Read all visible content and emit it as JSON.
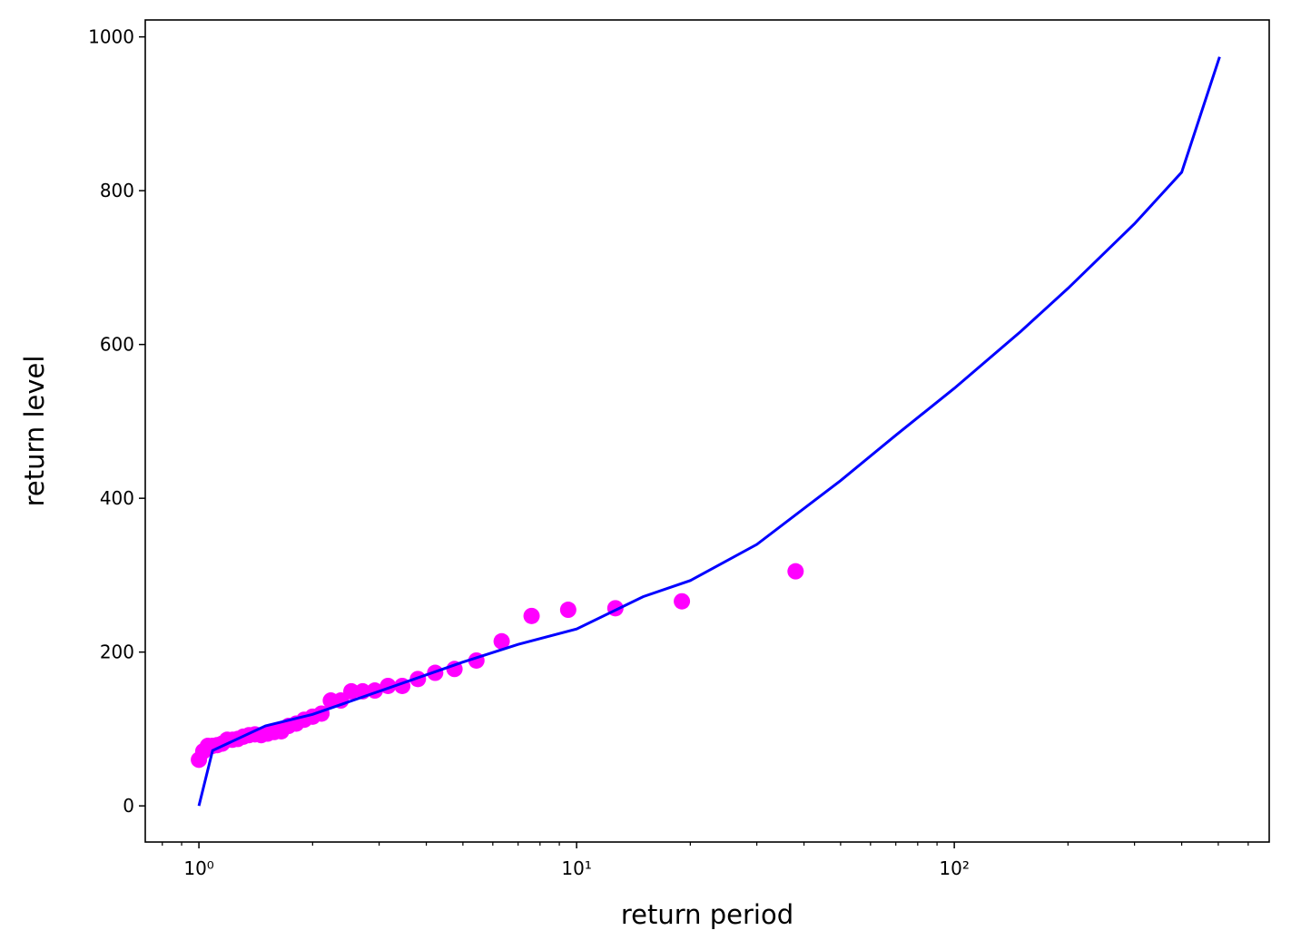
{
  "chart_data": {
    "type": "scatter",
    "x_label": "return period",
    "y_label": "return level",
    "xscale": "log",
    "xlim": [
      0.721,
      682
    ],
    "ylim": [
      -47,
      1022
    ],
    "xticks": [
      {
        "value": 1,
        "label": "10⁰"
      },
      {
        "value": 10,
        "label": "10¹"
      },
      {
        "value": 100,
        "label": "10²"
      }
    ],
    "xminorticks": [
      0.8,
      0.9,
      2,
      3,
      4,
      5,
      6,
      7,
      8,
      9,
      20,
      30,
      40,
      50,
      60,
      70,
      80,
      90,
      200,
      300,
      400,
      500,
      600
    ],
    "yticks": [
      0,
      200,
      400,
      600,
      800,
      1000
    ],
    "series": [
      {
        "type": "scatter",
        "color": "#ff00ff",
        "x": [
          1.0,
          1.027,
          1.056,
          1.086,
          1.118,
          1.152,
          1.188,
          1.226,
          1.267,
          1.31,
          1.357,
          1.407,
          1.462,
          1.52,
          1.583,
          1.652,
          1.727,
          1.81,
          1.9,
          2.0,
          2.111,
          2.235,
          2.375,
          2.533,
          2.714,
          2.923,
          3.167,
          3.455,
          3.8,
          4.222,
          4.75,
          5.429,
          6.333,
          7.6,
          9.5,
          12.667,
          19,
          38
        ],
        "values": [
          60,
          71,
          78,
          78,
          79,
          81,
          86,
          86,
          87,
          90,
          92,
          93,
          92,
          94,
          96,
          97,
          104,
          107,
          112,
          116,
          120,
          137,
          137,
          149,
          149,
          150,
          156,
          156,
          165,
          173,
          178,
          189,
          214,
          247,
          255,
          257,
          266,
          305
        ]
      },
      {
        "type": "line",
        "color": "#0000ff",
        "x": [
          1,
          1.087,
          1.5,
          2,
          3,
          5,
          7,
          10,
          15,
          20,
          30,
          50,
          70,
          100,
          150,
          200,
          300,
          400,
          504
        ],
        "values": [
          0,
          72,
          104,
          119,
          149,
          187,
          210,
          230,
          272,
          293,
          340,
          423,
          482,
          543,
          617,
          673,
          757,
          824,
          974
        ]
      }
    ]
  }
}
